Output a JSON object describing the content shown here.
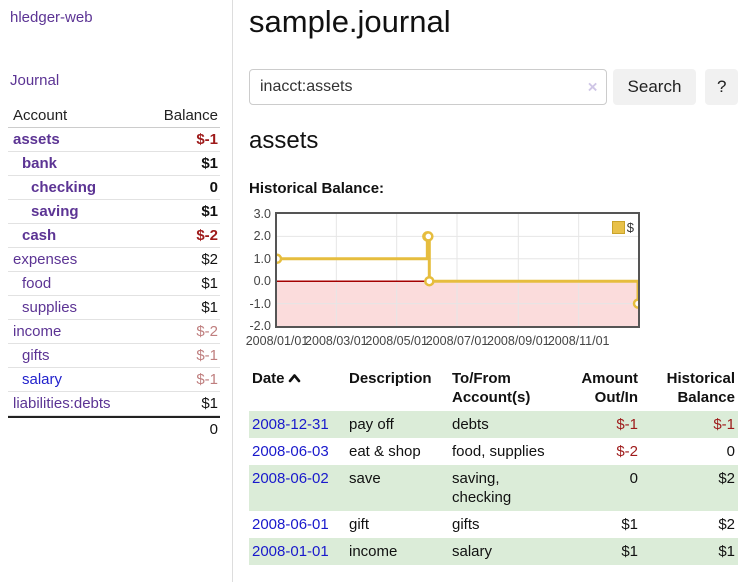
{
  "brand": "hledger-web",
  "sidebar": {
    "journal_link": "Journal",
    "accounts_table": {
      "headers": [
        "Account",
        "Balance"
      ],
      "rows": [
        {
          "account": "assets",
          "balance": "$-1",
          "indent": 1,
          "emphasis": true,
          "negative": "strong"
        },
        {
          "account": "bank",
          "balance": "$1",
          "indent": 2,
          "emphasis": true,
          "negative": "none"
        },
        {
          "account": "checking",
          "balance": "0",
          "indent": 3,
          "emphasis": true,
          "negative": "none"
        },
        {
          "account": "saving",
          "balance": "$1",
          "indent": 3,
          "emphasis": true,
          "negative": "none"
        },
        {
          "account": "cash",
          "balance": "$-2",
          "indent": 2,
          "emphasis": true,
          "negative": "strong"
        },
        {
          "account": "expenses",
          "balance": "$2",
          "indent": 1,
          "emphasis": false,
          "negative": "none"
        },
        {
          "account": "food",
          "balance": "$1",
          "indent": 2,
          "emphasis": false,
          "negative": "none"
        },
        {
          "account": "supplies",
          "balance": "$1",
          "indent": 2,
          "emphasis": false,
          "negative": "none"
        },
        {
          "account": "income",
          "balance": "$-2",
          "indent": 1,
          "emphasis": false,
          "negative": "soft"
        },
        {
          "account": "gifts",
          "balance": "$-1",
          "indent": 2,
          "emphasis": false,
          "negative": "soft"
        },
        {
          "account": "salary",
          "balance": "$-1",
          "indent": 2,
          "emphasis": false,
          "negative": "soft",
          "unvisited": true
        },
        {
          "account": "liabilities:debts",
          "balance": "$1",
          "indent": 1,
          "emphasis": false,
          "negative": "none"
        }
      ],
      "total": "0"
    }
  },
  "header": {
    "title": "sample.journal"
  },
  "search": {
    "value": "inacct:assets",
    "clear_icon": "×",
    "search_label": "Search",
    "help_label": "?"
  },
  "main": {
    "account_heading": "assets"
  },
  "chart_data": {
    "type": "line",
    "step": true,
    "title": "Historical Balance:",
    "legend": "$",
    "legend_position": "top-right",
    "series": [
      {
        "name": "$",
        "points": [
          [
            "2008-01-01",
            1
          ],
          [
            "2008-06-01",
            2
          ],
          [
            "2008-06-02",
            2
          ],
          [
            "2008-06-03",
            0
          ],
          [
            "2008-12-31",
            -1
          ]
        ]
      }
    ],
    "x_start": "2008-01-01",
    "x_end": "2008-12-31",
    "x_ticks": [
      "2008/01/01",
      "2008/03/01",
      "2008/05/01",
      "2008/07/01",
      "2008/09/01",
      "2008/11/01"
    ],
    "y_ticks": [
      "3.0",
      "2.0",
      "1.0",
      "0.0",
      "-1.0",
      "-2.0"
    ],
    "ylim": [
      -2,
      3
    ],
    "xlabel": "",
    "ylabel": "",
    "grid": true,
    "line_color": "#e6bd3e",
    "point_fill": "#ffffff",
    "grid_color": "#e6e6e6",
    "negative_region_color": "#fbdcdc",
    "zero_line_color": "#a40000"
  },
  "register_table": {
    "headers": [
      "Date",
      "Description",
      "To/From Account(s)",
      "Amount Out/In",
      "Historical Balance"
    ],
    "sort_column": "Date",
    "sort_direction": "ascending",
    "rows": [
      {
        "date": "2008-12-31",
        "description": "pay off",
        "accounts": "debts",
        "amount": "$-1",
        "balance": "$-1",
        "amount_negative": true,
        "balance_negative": true
      },
      {
        "date": "2008-06-03",
        "description": "eat & shop",
        "accounts": "food, supplies",
        "amount": "$-2",
        "balance": "0",
        "amount_negative": true,
        "balance_negative": false
      },
      {
        "date": "2008-06-02",
        "description": "save",
        "accounts": "saving, checking",
        "amount": "0",
        "balance": "$2",
        "amount_negative": false,
        "balance_negative": false
      },
      {
        "date": "2008-06-01",
        "description": "gift",
        "accounts": "gifts",
        "amount": "$1",
        "balance": "$2",
        "amount_negative": false,
        "balance_negative": false
      },
      {
        "date": "2008-01-01",
        "description": "income",
        "accounts": "salary",
        "amount": "$1",
        "balance": "$1",
        "amount_negative": false,
        "balance_negative": false
      }
    ]
  },
  "colors": {
    "link_purple": "#5c3494",
    "link_blue": "#2222cc",
    "negative_strong": "#9e1a1a",
    "negative_soft": "#bf7e7e",
    "row_green": "#dbecd8",
    "chart_line_gold": "#e6bd3e",
    "chart_negative_region": "#fbdcdc",
    "chart_zero_line": "#a40000"
  }
}
